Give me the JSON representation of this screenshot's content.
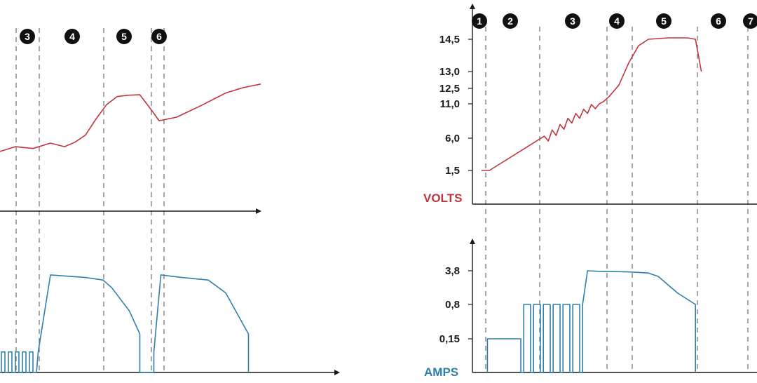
{
  "chart_data": [
    {
      "type": "line",
      "panel": "left-volts",
      "x": [
        0,
        2,
        3,
        4,
        4.8,
        5.4,
        6,
        6.6,
        7.2,
        7.8,
        8.4,
        9.1,
        9.8,
        10.2,
        11.2,
        12.5,
        14,
        15,
        16
      ],
      "y": [
        7.5,
        8.7,
        8.5,
        9.1,
        8.7,
        9.2,
        10,
        11.8,
        13.4,
        14.3,
        14.45,
        14.5,
        12.7,
        11.6,
        12,
        13.2,
        14.7,
        15.3,
        15.7
      ],
      "color": "#c1363d"
    },
    {
      "type": "line",
      "panel": "left-amps",
      "x": [
        0,
        0,
        0.2,
        0.2,
        0.4,
        0.4,
        0.6,
        0.6,
        0.8,
        0.8,
        1.0,
        1.0,
        1.2,
        1.2,
        1.4,
        1.4,
        1.6,
        1.6,
        1.8,
        1.8,
        2.0,
        2.0,
        2.2,
        2.2,
        2.4,
        2.4,
        2.6,
        2.6,
        2.8,
        2.8,
        3.0,
        3.0,
        3.2,
        3.3,
        4,
        6,
        7,
        7.5,
        8.5,
        9.1,
        9.1,
        9.9,
        9.9,
        10.3,
        11.5,
        13,
        14,
        15.3,
        15.3
      ],
      "y": [
        0,
        0.8,
        0.8,
        0,
        0,
        0.8,
        0.8,
        0,
        0,
        0.8,
        0.8,
        0,
        0,
        0.8,
        0.8,
        0,
        0,
        0.8,
        0.8,
        0,
        0,
        0.8,
        0.8,
        0,
        0,
        0.8,
        0.8,
        0,
        0,
        0.8,
        0.8,
        0,
        0,
        0.8,
        3.8,
        3.7,
        3.6,
        3.3,
        2.4,
        1.5,
        0,
        0,
        0.8,
        3.8,
        3.7,
        3.6,
        3.1,
        1.5,
        0
      ],
      "color": "#2f7fa8"
    },
    {
      "type": "line",
      "panel": "right-volts",
      "ylabel": "VOLTS",
      "yticks": [
        "1,5",
        "6,0",
        "11,0",
        "12,5",
        "13,0",
        "14,5"
      ],
      "stages": [
        "1",
        "2",
        "3",
        "4",
        "5",
        "6",
        "7"
      ],
      "x": [
        0,
        0.4,
        3.2,
        3.4,
        3.6,
        3.8,
        4.0,
        4.2,
        4.4,
        4.6,
        4.8,
        5.0,
        5.2,
        5.4,
        5.6,
        5.8,
        6.0,
        6.2,
        6.5,
        7,
        7.5,
        8,
        8.5,
        9,
        9.5,
        10.5,
        10.9,
        11.2
      ],
      "y": [
        1.5,
        1.5,
        6.3,
        5.6,
        7.2,
        6.4,
        8.0,
        7.3,
        8.9,
        8.2,
        9.6,
        8.9,
        10.2,
        9.6,
        10.9,
        10.3,
        11.0,
        11.2,
        11.7,
        12.6,
        13.4,
        14.2,
        14.5,
        14.55,
        14.6,
        14.6,
        14.5,
        13.0
      ],
      "color": "#c1363d"
    },
    {
      "type": "line",
      "panel": "right-amps",
      "ylabel": "AMPS",
      "yticks": [
        "0,15",
        "0,8",
        "3,8"
      ],
      "x": [
        0.3,
        0.3,
        2.0,
        2.0,
        2.15,
        2.15,
        2.5,
        2.5,
        2.65,
        2.65,
        3.0,
        3.0,
        3.15,
        3.15,
        3.5,
        3.5,
        3.65,
        3.65,
        4.0,
        4.0,
        4.15,
        4.15,
        4.5,
        4.5,
        4.65,
        4.65,
        5.0,
        5.0,
        5.15,
        5.15,
        5.4,
        6.0,
        7.5,
        8.5,
        9.0,
        10.0,
        10.9,
        10.9
      ],
      "y": [
        0,
        0.15,
        0.15,
        0,
        0,
        0.8,
        0.8,
        0,
        0,
        0.8,
        0.8,
        0,
        0,
        0.8,
        0.8,
        0,
        0,
        0.8,
        0.8,
        0,
        0,
        0.8,
        0.8,
        0,
        0,
        0.8,
        0.8,
        0,
        0,
        0.8,
        3.8,
        3.75,
        3.7,
        3.6,
        3.3,
        1.8,
        0.8,
        0
      ],
      "color": "#2f7fa8"
    }
  ],
  "left_badges": [
    "3",
    "4",
    "5",
    "6"
  ],
  "colors": {
    "volts": "#c1363d",
    "amps": "#2f7fa8",
    "axis": "#1a1a1a",
    "divider": "#6f6f6f",
    "badge": "#111111"
  }
}
